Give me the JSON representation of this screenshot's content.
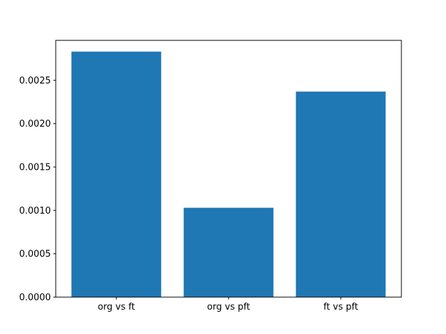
{
  "figure": {
    "background": "#ffffff",
    "spine_color": "#000000"
  },
  "chart_data": {
    "type": "bar",
    "title": "",
    "xlabel": "",
    "ylabel": "",
    "categories": [
      "org vs ft",
      "org vs pft",
      "ft vs pft"
    ],
    "values": [
      0.00283,
      0.00103,
      0.00237
    ],
    "bar_color": "#1f77b4",
    "bar_width_fraction": 0.8,
    "ylim": [
      0,
      0.00296
    ],
    "yticks": [
      0.0,
      0.0005,
      0.001,
      0.0015,
      0.002,
      0.0025
    ],
    "ytick_labels": [
      "0.0000",
      "0.0005",
      "0.0010",
      "0.0015",
      "0.0020",
      "0.0025"
    ],
    "grid": false,
    "legend": null
  }
}
